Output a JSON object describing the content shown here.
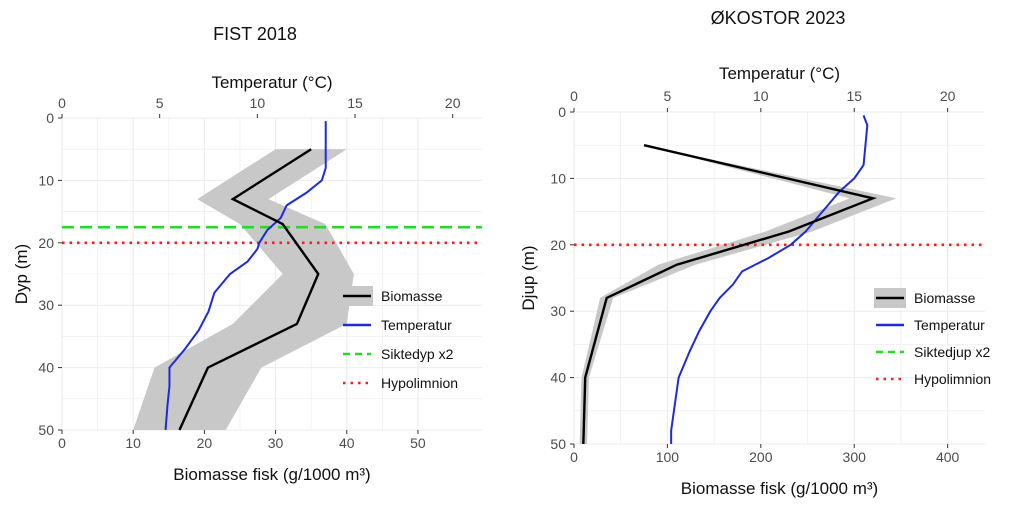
{
  "chart_data": [
    {
      "type": "line",
      "title": "FIST 2018",
      "x_top_label": "Temperatur (°C)",
      "x_top_ticks": [
        0,
        5,
        10,
        15,
        20
      ],
      "x_top_lim": [
        0,
        21.5
      ],
      "x_bottom_label": "Biomasse fisk (g/1000 m³)",
      "x_bottom_ticks": [
        0,
        10,
        20,
        30,
        40,
        50
      ],
      "x_bottom_lim": [
        0,
        59
      ],
      "ylabel": "Dyp (m)",
      "y_ticks": [
        0,
        10,
        20,
        30,
        40,
        50
      ],
      "ylim": [
        0,
        50
      ],
      "y_reversed": true,
      "grid": true,
      "legend_position": "right",
      "legend": [
        "Biomasse",
        "Temperatur",
        "Siktedyp x2",
        "Hypolimnion"
      ],
      "biomass": {
        "name": "Biomasse",
        "depth": [
          5,
          13,
          17,
          25,
          33,
          40,
          50
        ],
        "values": [
          35,
          24,
          31,
          36,
          33,
          20.5,
          16.5
        ],
        "lower": [
          30,
          19,
          25,
          31,
          24,
          13,
          10
        ],
        "upper": [
          40,
          29,
          37,
          41,
          40,
          28,
          23
        ]
      },
      "temperature": {
        "name": "Temperatur",
        "depth": [
          0.5,
          4,
          8,
          10,
          12,
          14,
          16,
          18,
          19,
          20,
          21,
          23,
          25,
          28,
          31,
          34,
          37,
          40,
          43,
          46,
          50
        ],
        "values": [
          13.5,
          13.5,
          13.5,
          13.3,
          12.5,
          11.5,
          11.2,
          10.5,
          10.3,
          10.1,
          10.0,
          9.5,
          8.6,
          7.8,
          7.5,
          7.0,
          6.3,
          5.5,
          5.5,
          5.4,
          5.3
        ]
      },
      "siktedyp_x2": 17.5,
      "hypolimnion": 20,
      "colors": {
        "biomass": "#000000",
        "band": "#c8c8c8",
        "temperature": "#1f2bd8",
        "secchi": "#22dd22",
        "hypolimnion": "#ee2222"
      }
    },
    {
      "type": "line",
      "title": "ØKOSTOR 2023",
      "x_top_label": "Temperatur (°C)",
      "x_top_ticks": [
        0,
        5,
        10,
        15,
        20
      ],
      "x_top_lim": [
        0,
        22
      ],
      "x_bottom_label": "Biomasse fisk (g/1000 m³)",
      "x_bottom_ticks": [
        0,
        100,
        200,
        300,
        400
      ],
      "x_bottom_lim": [
        0,
        440
      ],
      "ylabel": "Djup (m)",
      "y_ticks": [
        0,
        10,
        20,
        30,
        40,
        50
      ],
      "ylim": [
        0,
        50
      ],
      "y_reversed": true,
      "grid": true,
      "legend_position": "right",
      "legend": [
        "Biomasse",
        "Temperatur",
        "Siktedjup x2",
        "Hypolimnion"
      ],
      "biomass": {
        "name": "Biomasse",
        "depth": [
          5,
          13,
          18,
          23,
          28,
          40,
          50
        ],
        "values": [
          75,
          320,
          230,
          110,
          35,
          12,
          10
        ],
        "lower": [
          75,
          295,
          205,
          90,
          28,
          8,
          6
        ],
        "upper": [
          75,
          345,
          255,
          130,
          42,
          16,
          14
        ]
      },
      "temperature": {
        "name": "Temperatur",
        "depth": [
          0.5,
          2,
          5,
          8,
          10,
          12,
          14,
          16,
          18,
          20,
          22,
          24,
          26,
          28,
          30,
          33,
          36,
          40,
          44,
          48,
          50
        ],
        "values": [
          15.5,
          15.7,
          15.6,
          15.5,
          15.0,
          14.2,
          13.6,
          13.0,
          12.4,
          11.6,
          10.4,
          9.0,
          8.5,
          7.8,
          7.3,
          6.7,
          6.2,
          5.6,
          5.4,
          5.2,
          5.2
        ]
      },
      "hypolimnion": 20,
      "colors": {
        "biomass": "#000000",
        "band": "#c8c8c8",
        "temperature": "#1f2bd8",
        "secchi": "#22dd22",
        "hypolimnion": "#ee2222"
      }
    }
  ]
}
